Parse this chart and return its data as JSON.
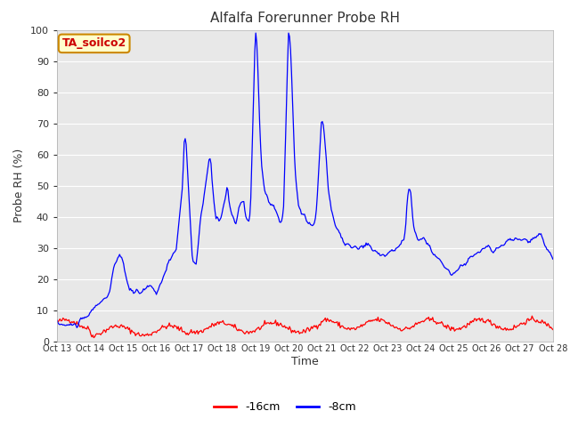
{
  "title": "Alfalfa Forerunner Probe RH",
  "xlabel": "Time",
  "ylabel": "Probe RH (%)",
  "ylim": [
    0,
    100
  ],
  "yticks": [
    0,
    10,
    20,
    30,
    40,
    50,
    60,
    70,
    80,
    90,
    100
  ],
  "plot_bg": "#e8e8e8",
  "fig_bg": "#ffffff",
  "annotation_text": "TA_soilco2",
  "annotation_bg": "#ffffcc",
  "annotation_edge": "#cc8800",
  "red_color": "#ff0000",
  "blue_color": "#0000ff",
  "legend_red": "-16cm",
  "legend_blue": "-8cm",
  "x_tick_labels": [
    "Oct 13",
    "Oct 14",
    "Oct 15",
    "Oct 16",
    "Oct 17",
    "Oct 18",
    "Oct 19",
    "Oct 20",
    "Oct 21",
    "Oct 22",
    "Oct 23",
    "Oct 24",
    "Oct 25",
    "Oct 26",
    "Oct 27",
    "Oct 28"
  ],
  "num_points": 500
}
